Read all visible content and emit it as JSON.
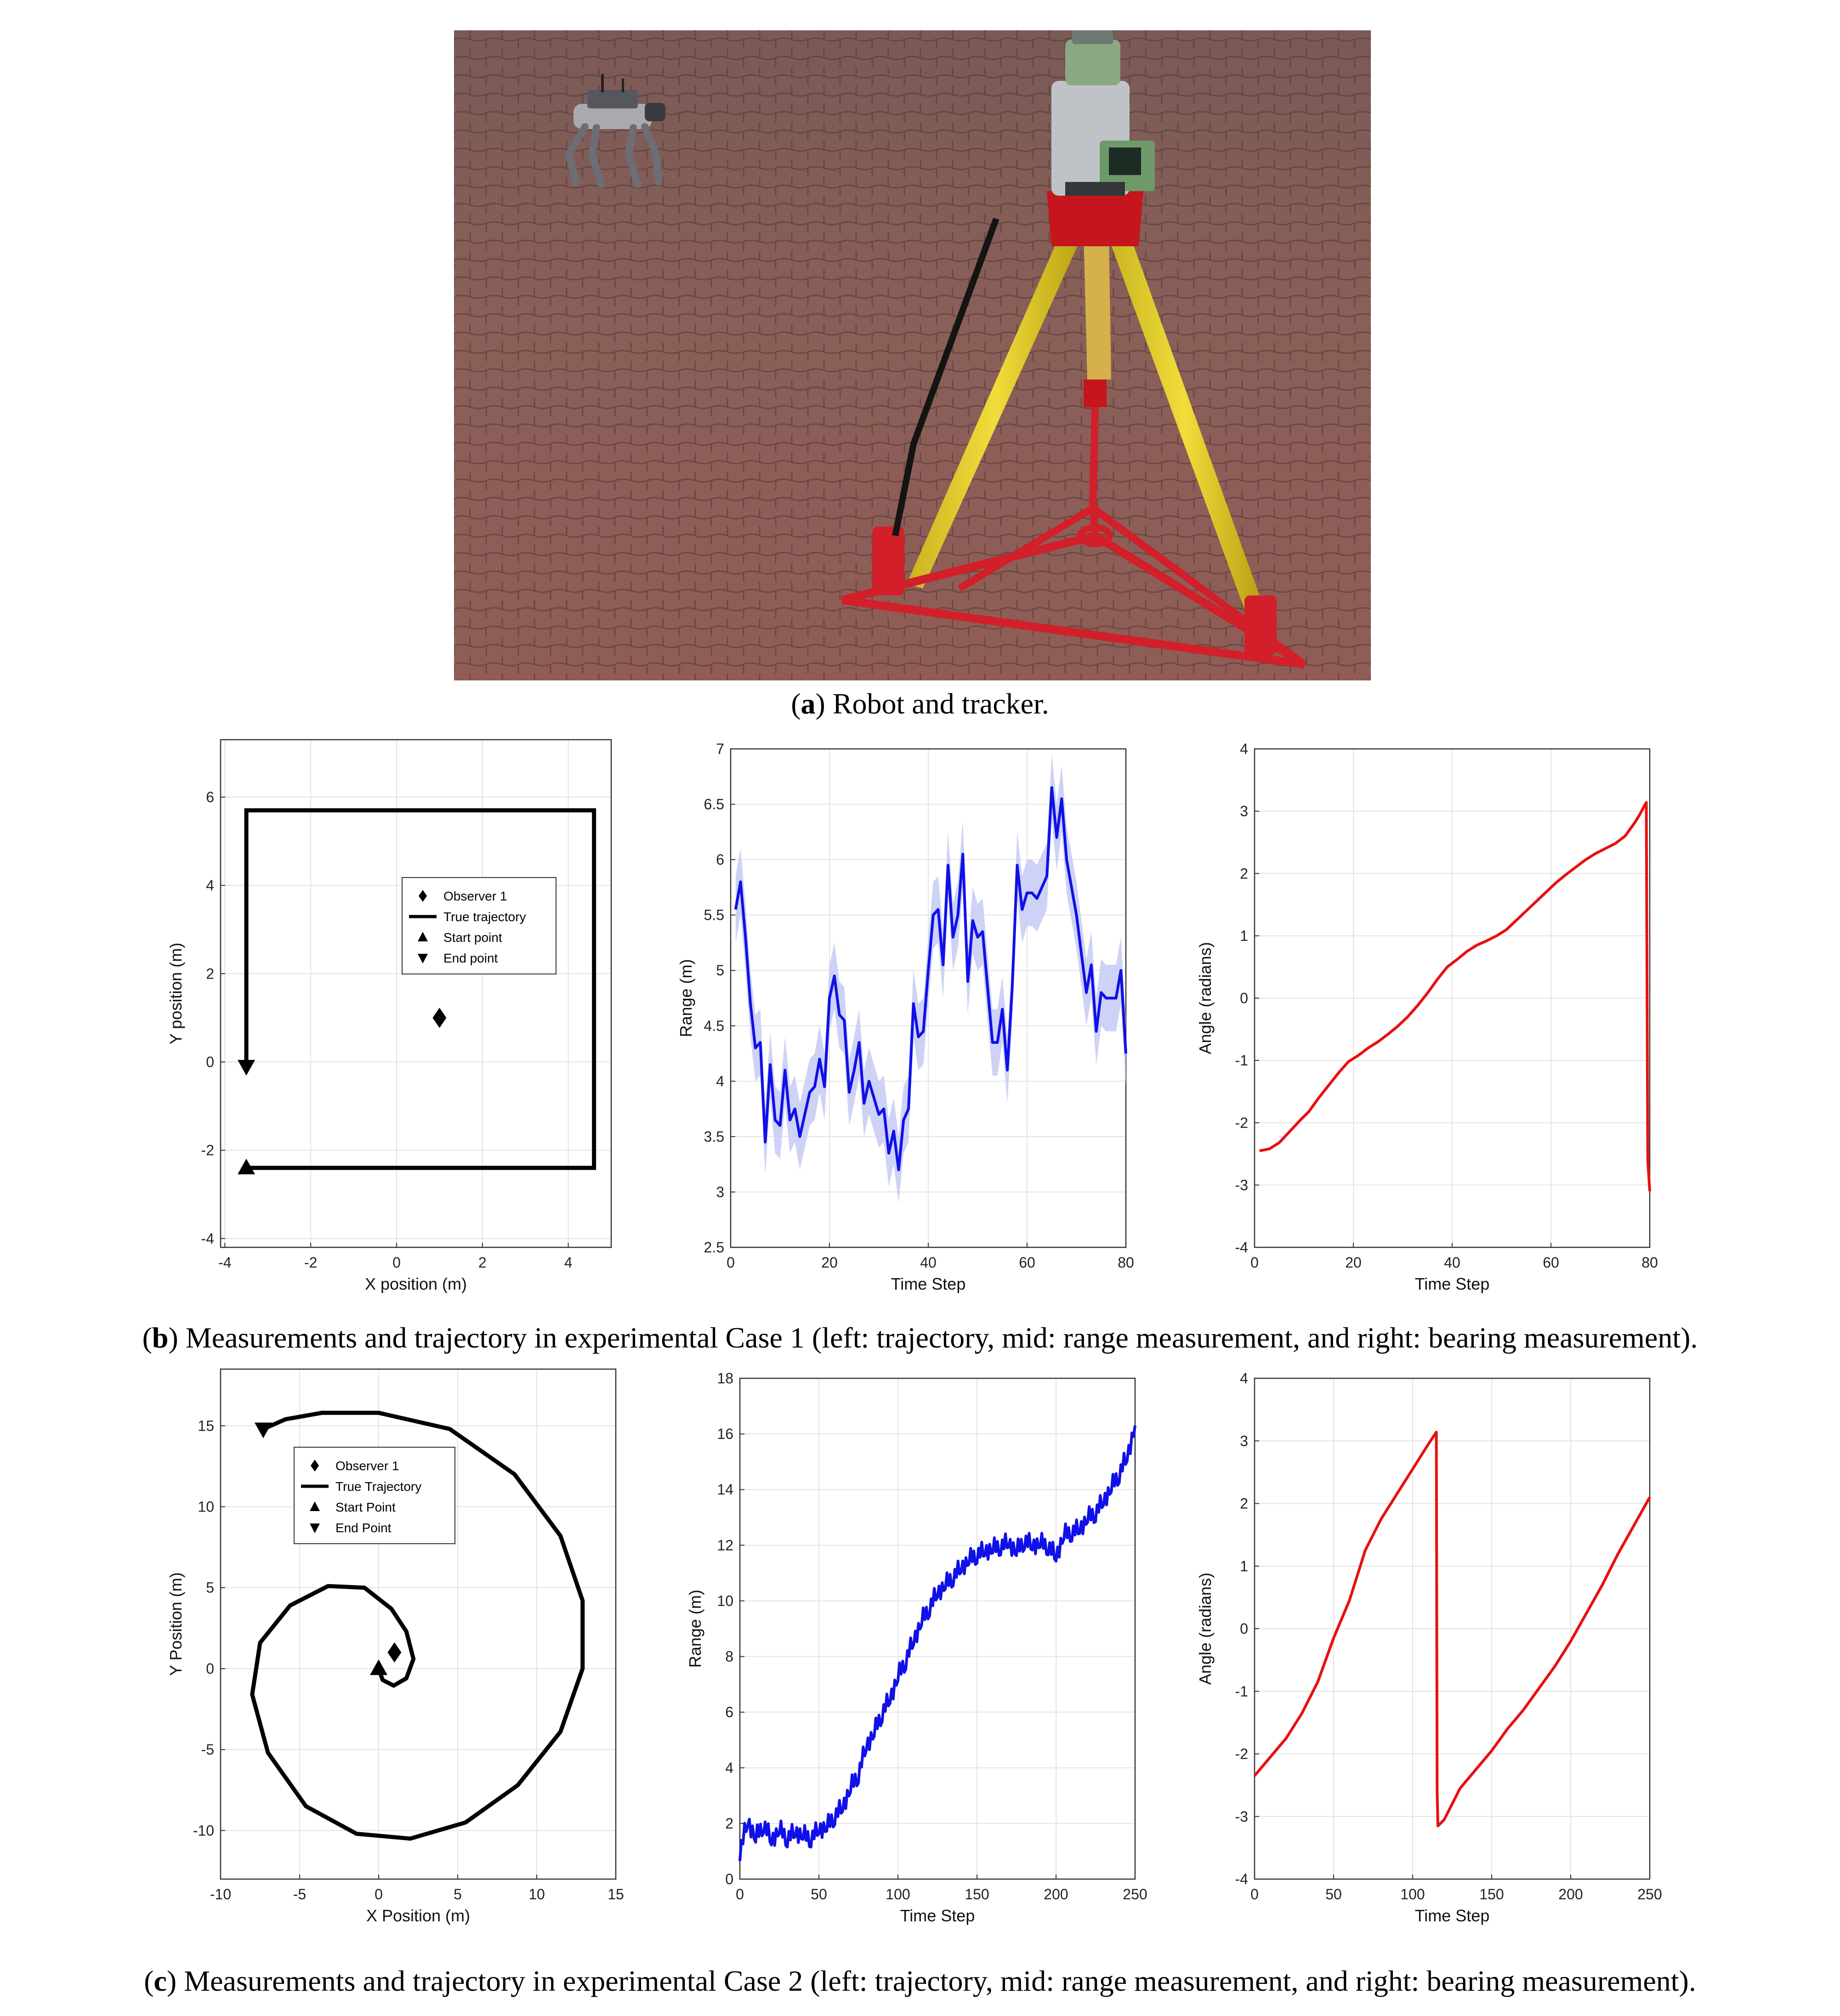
{
  "figure": {
    "photo_subject": "quadruped robot and total-station tracker on tripod over brick pavement",
    "captions": {
      "a": {
        "label": "a",
        "text": ") Robot and tracker."
      },
      "b": {
        "label": "b",
        "text": ") Measurements and trajectory in experimental Case 1 (left: trajectory, mid: range measurement, and right: bearing measurement)."
      },
      "c": {
        "label": "c",
        "text": ") Measurements and trajectory in experimental Case 2 (left: trajectory, mid: range measurement, and right: bearing measurement)."
      }
    }
  },
  "chart_data": [
    {
      "id": "b1",
      "type": "line",
      "xlabel": "X position (m)",
      "ylabel": "Y position (m)",
      "xlim": [
        -4.1,
        5.0
      ],
      "ylim": [
        -4.2,
        7.3
      ],
      "xticks": [
        -4,
        -2,
        0,
        2,
        4
      ],
      "yticks": [
        -4,
        -2,
        0,
        2,
        4,
        6
      ],
      "grid": true,
      "legend": [
        "Observer 1",
        "True trajectory",
        "Start point",
        "End point"
      ],
      "legend_placement": "center",
      "trajectory": [
        [
          -3.5,
          -2.4
        ],
        [
          4.6,
          -2.4
        ],
        [
          4.6,
          5.7
        ],
        [
          -3.5,
          5.7
        ],
        [
          -3.5,
          -0.1
        ]
      ],
      "observer": [
        1.0,
        1.0
      ],
      "start": [
        -3.5,
        -2.4
      ],
      "end": [
        -3.5,
        -0.1
      ]
    },
    {
      "id": "b2",
      "type": "line",
      "xlabel": "Time Step",
      "ylabel": "Range (m)",
      "xlim": [
        0,
        80
      ],
      "ylim": [
        2.5,
        7
      ],
      "xticks": [
        0,
        20,
        40,
        60,
        80
      ],
      "yticks": [
        2.5,
        3,
        3.5,
        4,
        4.5,
        5,
        5.5,
        6,
        6.5,
        7
      ],
      "grid": true,
      "color": "#1010e8",
      "band_color": "#c8cdf5",
      "x": [
        1,
        2,
        3,
        4,
        5,
        6,
        7,
        8,
        9,
        10,
        11,
        12,
        13,
        14,
        15,
        16,
        17,
        18,
        19,
        20,
        21,
        22,
        23,
        24,
        25,
        26,
        27,
        28,
        29,
        30,
        31,
        32,
        33,
        34,
        35,
        36,
        37,
        38,
        39,
        40,
        41,
        42,
        43,
        44,
        45,
        46,
        47,
        48,
        49,
        50,
        51,
        52,
        53,
        54,
        55,
        56,
        57,
        58,
        59,
        60,
        61,
        62,
        63,
        64,
        65,
        66,
        67,
        68,
        69,
        70,
        71,
        72,
        73,
        74,
        75,
        76,
        77,
        78,
        79,
        80
      ],
      "values": [
        5.55,
        5.8,
        5.3,
        4.7,
        4.3,
        4.35,
        3.45,
        4.15,
        3.65,
        3.6,
        4.1,
        3.65,
        3.75,
        3.5,
        3.7,
        3.9,
        3.95,
        4.2,
        3.95,
        4.75,
        4.95,
        4.6,
        4.55,
        3.9,
        4.1,
        4.35,
        3.8,
        4.0,
        3.85,
        3.7,
        3.75,
        3.35,
        3.55,
        3.2,
        3.65,
        3.75,
        4.7,
        4.4,
        4.45,
        5.0,
        5.5,
        5.55,
        5.05,
        5.95,
        5.3,
        5.5,
        6.05,
        4.9,
        5.45,
        5.3,
        5.35,
        4.85,
        4.35,
        4.35,
        4.65,
        4.1,
        4.85,
        5.95,
        5.55,
        5.7,
        5.7,
        5.65,
        5.75,
        5.85,
        6.65,
        6.2,
        6.55,
        6.0,
        5.75,
        5.5,
        5.15,
        4.8,
        5.05,
        4.45,
        4.8,
        4.75,
        4.75,
        4.75,
        5.0,
        4.25
      ],
      "band_halfwidth": 0.3
    },
    {
      "id": "b3",
      "type": "line",
      "xlabel": "Time Step",
      "ylabel": "Angle (radians)",
      "xlim": [
        0,
        80
      ],
      "ylim": [
        -4,
        4
      ],
      "xticks": [
        0,
        20,
        40,
        60,
        80
      ],
      "yticks": [
        -4,
        -3,
        -2,
        -1,
        0,
        1,
        2,
        3,
        4
      ],
      "grid": true,
      "color": "#e81010",
      "x": [
        1,
        3,
        5,
        7,
        9,
        11,
        13,
        15,
        17,
        19,
        21,
        23,
        25,
        27,
        29,
        31,
        33,
        35,
        37,
        39,
        41,
        43,
        45,
        47,
        49,
        51,
        53,
        55,
        57,
        59,
        61,
        63,
        65,
        67,
        69,
        71,
        73,
        75,
        77,
        78,
        79,
        79.3,
        79.6,
        80
      ],
      "values": [
        -2.45,
        -2.42,
        -2.32,
        -2.15,
        -1.98,
        -1.82,
        -1.6,
        -1.4,
        -1.2,
        -1.02,
        -0.92,
        -0.8,
        -0.7,
        -0.58,
        -0.45,
        -0.3,
        -0.12,
        0.08,
        0.3,
        0.5,
        0.62,
        0.75,
        0.85,
        0.92,
        1.0,
        1.1,
        1.25,
        1.4,
        1.55,
        1.7,
        1.85,
        1.98,
        2.1,
        2.22,
        2.32,
        2.4,
        2.48,
        2.6,
        2.82,
        2.95,
        3.1,
        3.14,
        -2.6,
        -3.1
      ]
    },
    {
      "id": "c1",
      "type": "line",
      "xlabel": "X Position (m)",
      "ylabel": "Y Position (m)",
      "xlim": [
        -10,
        15
      ],
      "ylim": [
        -13,
        18.5
      ],
      "xticks": [
        -10,
        -5,
        0,
        5,
        10,
        15
      ],
      "yticks": [
        -10,
        -5,
        0,
        5,
        10,
        15
      ],
      "grid": true,
      "legend": [
        "Observer 1",
        "True Trajectory",
        "Start Point",
        "End Point"
      ],
      "legend_placement": "top-left",
      "trajectory": [
        [
          0,
          0
        ],
        [
          0.25,
          -0.7
        ],
        [
          0.95,
          -1.05
        ],
        [
          1.75,
          -0.6
        ],
        [
          2.2,
          0.6
        ],
        [
          1.75,
          2.3
        ],
        [
          0.8,
          3.7
        ],
        [
          -0.9,
          5.0
        ],
        [
          -3.2,
          5.1
        ],
        [
          -5.6,
          3.9
        ],
        [
          -7.5,
          1.6
        ],
        [
          -8.0,
          -1.6
        ],
        [
          -7.0,
          -5.2
        ],
        [
          -4.6,
          -8.5
        ],
        [
          -1.4,
          -10.2
        ],
        [
          2.0,
          -10.5
        ],
        [
          5.5,
          -9.5
        ],
        [
          8.8,
          -7.2
        ],
        [
          11.5,
          -3.9
        ],
        [
          12.9,
          0.0
        ],
        [
          12.9,
          4.2
        ],
        [
          11.5,
          8.2
        ],
        [
          8.6,
          12.0
        ],
        [
          4.5,
          14.8
        ],
        [
          0,
          15.8
        ],
        [
          -3.6,
          15.8
        ],
        [
          -5.9,
          15.4
        ],
        [
          -7.3,
          14.8
        ]
      ],
      "observer": [
        1.0,
        1.0
      ],
      "start": [
        0.0,
        0.0
      ],
      "end": [
        -7.3,
        14.8
      ]
    },
    {
      "id": "c2",
      "type": "line",
      "xlabel": "Time Step",
      "ylabel": "Range (m)",
      "xlim": [
        0,
        250
      ],
      "ylim": [
        0,
        18
      ],
      "xticks": [
        0,
        50,
        100,
        150,
        200,
        250
      ],
      "yticks": [
        0,
        2,
        4,
        6,
        8,
        10,
        12,
        14,
        16,
        18
      ],
      "grid": true,
      "color": "#1010e8",
      "x": [
        0,
        5,
        10,
        15,
        20,
        25,
        30,
        35,
        40,
        45,
        50,
        55,
        60,
        65,
        70,
        75,
        80,
        85,
        90,
        95,
        100,
        105,
        110,
        115,
        120,
        125,
        130,
        135,
        140,
        145,
        150,
        155,
        160,
        165,
        170,
        175,
        180,
        185,
        190,
        195,
        200,
        205,
        210,
        215,
        220,
        225,
        230,
        235,
        240,
        245,
        250
      ],
      "values": [
        1.0,
        2.1,
        1.5,
        2.0,
        1.4,
        1.8,
        1.5,
        1.7,
        1.6,
        1.5,
        1.8,
        1.9,
        2.3,
        2.6,
        3.3,
        3.8,
        4.8,
        5.3,
        6.0,
        6.5,
        7.3,
        7.9,
        8.6,
        9.3,
        9.8,
        10.3,
        10.6,
        10.9,
        11.2,
        11.5,
        11.7,
        11.8,
        11.9,
        12.0,
        12.1,
        11.8,
        12.2,
        12.0,
        12.1,
        12.0,
        11.6,
        12.4,
        12.5,
        12.6,
        13.0,
        13.2,
        13.6,
        14.1,
        14.6,
        15.2,
        16.3
      ]
    },
    {
      "id": "c3",
      "type": "line",
      "xlabel": "Time Step",
      "ylabel": "Angle (radians)",
      "xlim": [
        0,
        250
      ],
      "ylim": [
        -4,
        4
      ],
      "xticks": [
        0,
        50,
        100,
        150,
        200,
        250
      ],
      "yticks": [
        -4,
        -3,
        -2,
        -1,
        0,
        1,
        2,
        3,
        4
      ],
      "grid": true,
      "color": "#e81010",
      "x": [
        0,
        10,
        20,
        30,
        40,
        50,
        60,
        70,
        80,
        90,
        100,
        110,
        115,
        115.5,
        116,
        120,
        130,
        140,
        150,
        160,
        170,
        180,
        190,
        200,
        210,
        220,
        230,
        240,
        250
      ],
      "values": [
        -2.35,
        -2.05,
        -1.75,
        -1.35,
        -0.85,
        -0.15,
        0.45,
        1.25,
        1.75,
        2.15,
        2.55,
        2.95,
        3.14,
        -2.6,
        -3.15,
        -3.05,
        -2.55,
        -2.25,
        -1.95,
        -1.6,
        -1.3,
        -0.95,
        -0.6,
        -0.2,
        0.25,
        0.7,
        1.2,
        1.65,
        2.1
      ]
    }
  ]
}
